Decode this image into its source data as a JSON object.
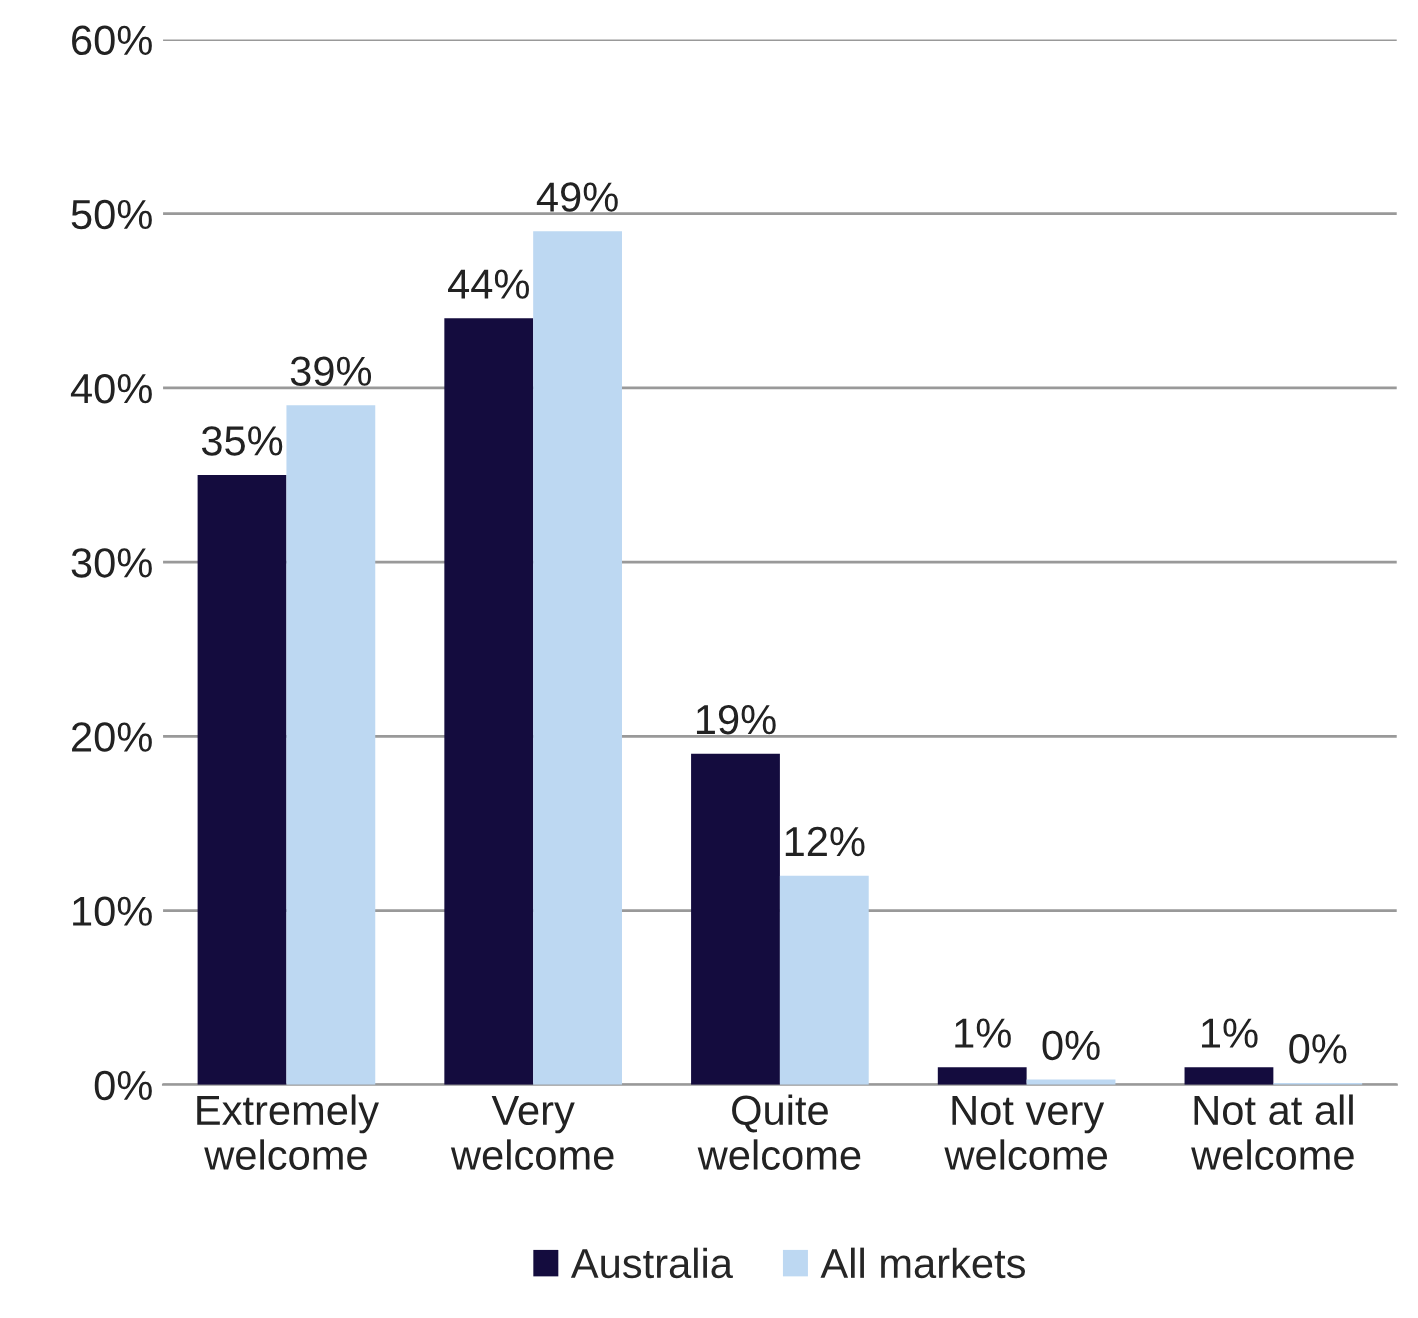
{
  "chart_data": {
    "type": "bar",
    "categories": [
      "Extremely\nwelcome",
      "Very\nwelcome",
      "Quite\nwelcome",
      "Not very\nwelcome",
      "Not at all\nwelcome"
    ],
    "series": [
      {
        "name": "Australia",
        "color": "#140c3e",
        "values": [
          35,
          44,
          19,
          1,
          1
        ],
        "value_labels": [
          "35%",
          "44%",
          "19%",
          "1%",
          "1%"
        ]
      },
      {
        "name": "All markets",
        "color": "#bdd8f2",
        "values": [
          39,
          49,
          12,
          0.3,
          0.1
        ],
        "value_labels": [
          "39%",
          "49%",
          "12%",
          "0%",
          "0%"
        ]
      }
    ],
    "ylim": [
      0,
      60
    ],
    "yticks": [
      {
        "value": 0,
        "label": "0%"
      },
      {
        "value": 10,
        "label": "10%"
      },
      {
        "value": 20,
        "label": "20%"
      },
      {
        "value": 30,
        "label": "30%"
      },
      {
        "value": 40,
        "label": "40%"
      },
      {
        "value": 50,
        "label": "50%"
      },
      {
        "value": 60,
        "label": "60%"
      }
    ],
    "grid": "y",
    "legend": "bottom"
  }
}
